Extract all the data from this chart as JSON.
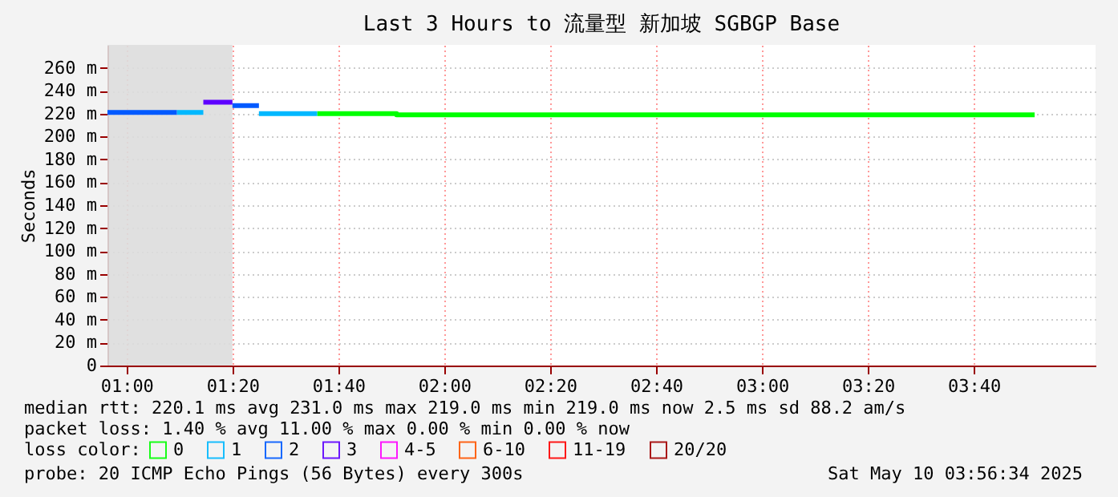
{
  "chart_data": {
    "type": "step",
    "title": "Last 3 Hours to 流量型 新加坡 SGBGP Base",
    "ylabel": "Seconds",
    "xlim": [
      0.94,
      4.05
    ],
    "ylim": [
      0,
      280
    ],
    "xticks": [
      {
        "value": 1.0,
        "label": "01:00"
      },
      {
        "value": 1.3333,
        "label": "01:20"
      },
      {
        "value": 1.6667,
        "label": "01:40"
      },
      {
        "value": 2.0,
        "label": "02:00"
      },
      {
        "value": 2.3333,
        "label": "02:20"
      },
      {
        "value": 2.6667,
        "label": "02:40"
      },
      {
        "value": 3.0,
        "label": "03:00"
      },
      {
        "value": 3.3333,
        "label": "03:20"
      },
      {
        "value": 3.6667,
        "label": "03:40"
      }
    ],
    "yticks": [
      0,
      {
        "value": 20,
        "label": "20 m"
      },
      {
        "value": 40,
        "label": "40 m"
      },
      {
        "value": 60,
        "label": "60 m"
      },
      {
        "value": 80,
        "label": "80 m"
      },
      {
        "value": 100,
        "label": "100 m"
      },
      {
        "value": 120,
        "label": "120 m"
      },
      {
        "value": 140,
        "label": "140 m"
      },
      {
        "value": 160,
        "label": "160 m"
      },
      {
        "value": 180,
        "label": "180 m"
      },
      {
        "value": 200,
        "label": "200 m"
      },
      {
        "value": 220,
        "label": "220 m"
      },
      {
        "value": 240,
        "label": "240 m"
      },
      {
        "value": 260,
        "label": "260 m"
      }
    ],
    "grid": true,
    "legend": "bottom",
    "legend_title": "loss color:",
    "bands": [
      {
        "axis": "x",
        "from": 0.94,
        "to": 1.3333,
        "color": "#dddddd"
      }
    ],
    "series": [
      {
        "name": "0",
        "color": "#00ff00",
        "x": [
          1.6,
          1.85,
          1.9333,
          3.8583
        ],
        "values": [
          220,
          219,
          219,
          219
        ]
      },
      {
        "name": "1",
        "color": "#00b8ff",
        "x": [
          1.1583,
          1.2417,
          1.4167,
          1.6
        ],
        "values": [
          221,
          null,
          220,
          220
        ]
      },
      {
        "name": "2",
        "color": "#0059ff",
        "x": [
          0.94,
          1.1583,
          1.3333,
          1.4167
        ],
        "values": [
          221,
          null,
          227,
          227
        ]
      },
      {
        "name": "3",
        "color": "#5e00ff",
        "x": [
          1.2417,
          1.3333
        ],
        "values": [
          230,
          230
        ]
      },
      {
        "name": "4-5",
        "color": "#ff00ff"
      },
      {
        "name": "6-10",
        "color": "#ff5500"
      },
      {
        "name": "11-19",
        "color": "#ff0000"
      },
      {
        "name": "20/20",
        "color": "#a10000"
      }
    ],
    "annotations": [
      "median rtt:  220.1 ms avg  231.0 ms max  219.0 ms min  219.0 ms now  2.5 ms sd  88.2   am/s",
      "packet loss: 1.40 % avg  11.00 % max  0.00 % min  0.00 % now",
      "probe:       20 ICMP Echo Pings (56 Bytes) every 300s",
      "Sat May 10 03:56:34 2025"
    ]
  }
}
